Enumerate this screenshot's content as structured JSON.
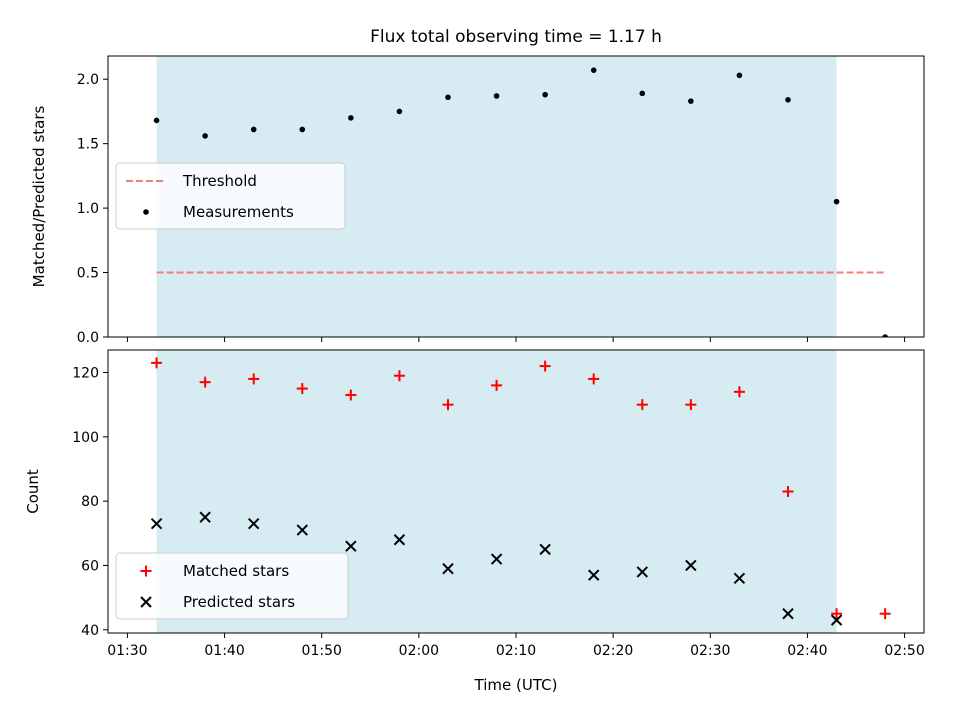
{
  "chart_data": [
    {
      "type": "scatter",
      "title": "Flux total observing time = 1.17 h",
      "xlabel": "",
      "ylabel": "Matched/Predicted stars",
      "xlim": [
        "01:28",
        "02:52"
      ],
      "ylim": [
        0,
        2.18
      ],
      "yticks": [
        "0.0",
        "0.5",
        "1.0",
        "1.5",
        "2.0"
      ],
      "shaded_region": {
        "x0": "01:33",
        "x1": "02:43",
        "color": "#add8e6"
      },
      "series": [
        {
          "name": "Threshold",
          "kind": "dashed-line",
          "color": "#f08080",
          "x": [
            "01:33",
            "02:48"
          ],
          "y": [
            0.5,
            0.5
          ]
        },
        {
          "name": "Measurements",
          "kind": "dot",
          "color": "#000000",
          "x": [
            "01:33",
            "01:38",
            "01:43",
            "01:48",
            "01:53",
            "01:58",
            "02:03",
            "02:08",
            "02:13",
            "02:18",
            "02:23",
            "02:28",
            "02:33",
            "02:38",
            "02:43",
            "02:48"
          ],
          "y": [
            1.68,
            1.56,
            1.61,
            1.61,
            1.7,
            1.75,
            1.86,
            1.87,
            1.88,
            2.07,
            1.89,
            1.83,
            2.03,
            1.84,
            1.05,
            0.0
          ]
        }
      ],
      "legend": {
        "placement": "center-left"
      },
      "grid": false
    },
    {
      "type": "scatter",
      "title": "",
      "xlabel": "Time (UTC)",
      "ylabel": "Count",
      "xlim": [
        "01:28",
        "02:52"
      ],
      "ylim": [
        39,
        127
      ],
      "yticks": [
        "40",
        "60",
        "80",
        "100",
        "120"
      ],
      "xticks": [
        "01:30",
        "01:40",
        "01:50",
        "02:00",
        "02:10",
        "02:20",
        "02:30",
        "02:40",
        "02:50"
      ],
      "shaded_region": {
        "x0": "01:33",
        "x1": "02:43",
        "color": "#add8e6"
      },
      "series": [
        {
          "name": "Matched stars",
          "kind": "plus",
          "color": "#ff0000",
          "x": [
            "01:33",
            "01:38",
            "01:43",
            "01:48",
            "01:53",
            "01:58",
            "02:03",
            "02:08",
            "02:13",
            "02:18",
            "02:23",
            "02:28",
            "02:33",
            "02:38",
            "02:43",
            "02:48"
          ],
          "y": [
            123,
            117,
            118,
            115,
            113,
            119,
            110,
            116,
            122,
            118,
            110,
            110,
            114,
            83,
            45,
            45
          ]
        },
        {
          "name": "Predicted stars",
          "kind": "x",
          "color": "#000000",
          "x": [
            "01:33",
            "01:38",
            "01:43",
            "01:48",
            "01:53",
            "01:58",
            "02:03",
            "02:08",
            "02:13",
            "02:18",
            "02:23",
            "02:28",
            "02:33",
            "02:38",
            "02:43"
          ],
          "y": [
            73,
            75,
            73,
            71,
            66,
            68,
            59,
            62,
            65,
            57,
            58,
            60,
            56,
            45,
            43
          ]
        }
      ],
      "legend": {
        "placement": "lower-left"
      },
      "grid": false
    }
  ]
}
